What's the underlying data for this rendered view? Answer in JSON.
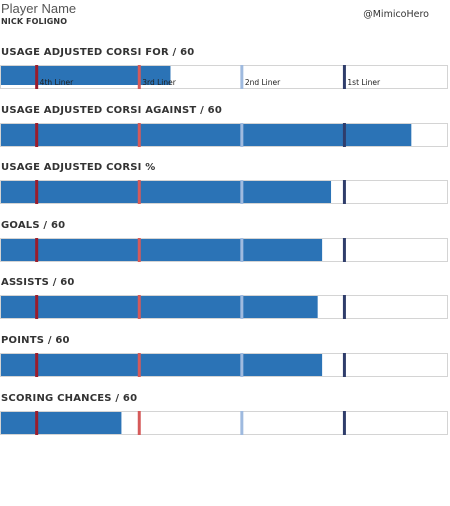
{
  "header": {
    "label": "Player Name",
    "player": "NICK FOLIGNO",
    "handle": "@MimicoHero"
  },
  "colors": {
    "bar": "#2b73b6",
    "track_border": "#d4d4d4",
    "marker_4th": "#9b1c2c",
    "marker_3rd": "#d55a5a",
    "marker_2nd": "#9fbadf",
    "marker_1st": "#2f3d6b"
  },
  "markers": [
    {
      "label": "4th Liner",
      "value": 8.0,
      "color": "#9b1c2c"
    },
    {
      "label": "3rd Liner",
      "value": 31.0,
      "color": "#d55a5a"
    },
    {
      "label": "2nd Liner",
      "value": 54.0,
      "color": "#9fbadf"
    },
    {
      "label": "1st Liner",
      "value": 77.0,
      "color": "#2f3d6b"
    }
  ],
  "chart_data": {
    "type": "bar",
    "orientation": "horizontal",
    "scale": "percentile",
    "xlim": [
      0,
      100
    ],
    "categories": [
      "USAGE ADJUSTED CORSI FOR / 60",
      "USAGE ADJUSTED CORSI AGAINST / 60",
      "USAGE ADJUSTED CORSI %",
      "GOALS / 60",
      "ASSISTS / 60",
      "POINTS / 60",
      "SCORING CHANCES / 60"
    ],
    "values": [
      38,
      92,
      74,
      72,
      71,
      72,
      27
    ]
  }
}
